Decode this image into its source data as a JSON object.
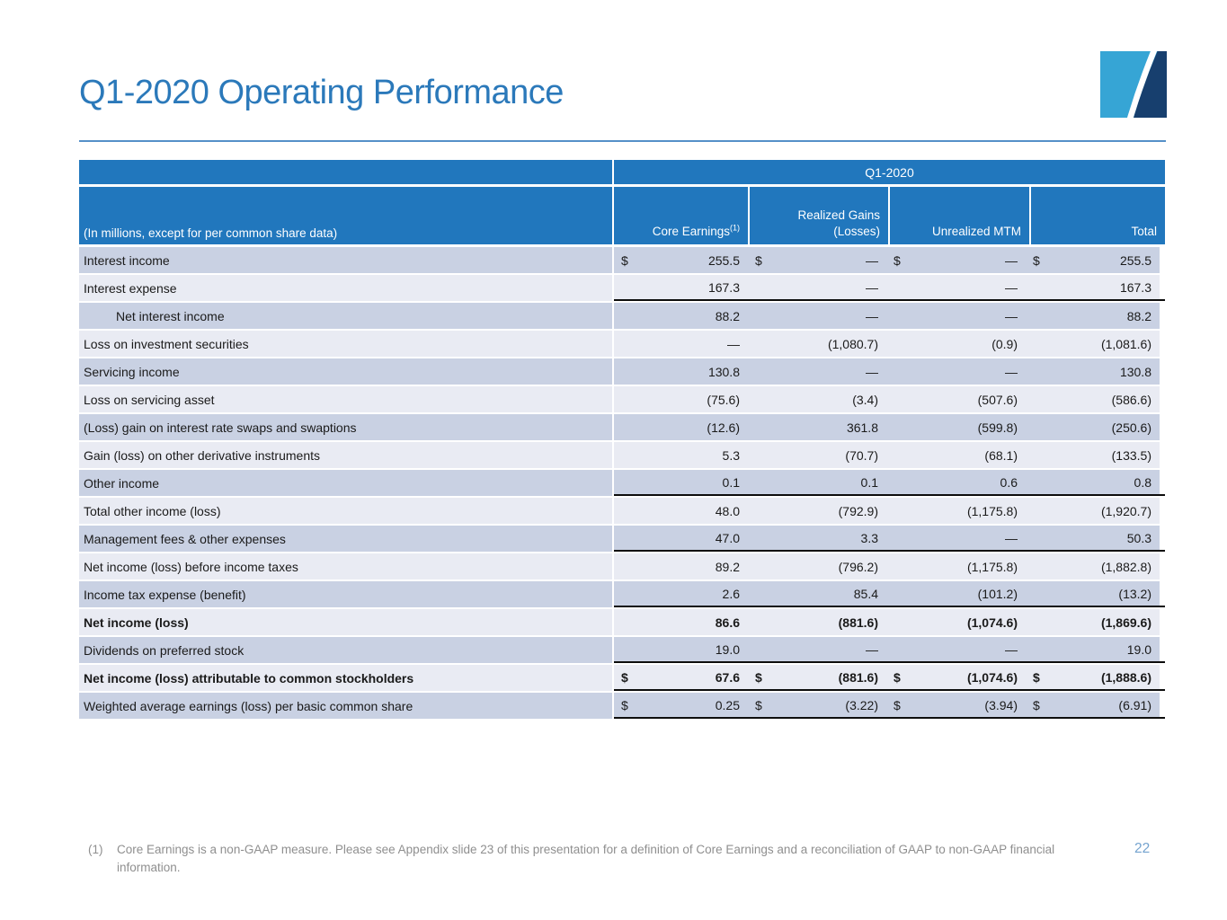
{
  "header": {
    "title": "Q1-2020 Operating Performance"
  },
  "table": {
    "period_header": "Q1-2020",
    "note_label": "(In millions, except for per common share data)",
    "columns": [
      {
        "label": "Core Earnings",
        "sup": "(1)"
      },
      {
        "label": "Realized Gains (Losses)",
        "sup": ""
      },
      {
        "label": "Unrealized MTM",
        "sup": ""
      },
      {
        "label": "Total",
        "sup": ""
      }
    ],
    "currency_symbol": "$",
    "rows": [
      {
        "label": "Interest income",
        "shade": "dark",
        "dollar": true,
        "bold": false,
        "indent": false,
        "line": false,
        "values": [
          "255.5",
          "—",
          "—",
          "255.5"
        ]
      },
      {
        "label": "Interest expense",
        "shade": "light",
        "dollar": false,
        "bold": false,
        "indent": false,
        "line": true,
        "values": [
          "167.3",
          "—",
          "—",
          "167.3"
        ]
      },
      {
        "label": "Net interest income",
        "shade": "dark",
        "dollar": false,
        "bold": false,
        "indent": true,
        "line": false,
        "values": [
          "88.2",
          "—",
          "—",
          "88.2"
        ]
      },
      {
        "label": "Loss on investment securities",
        "shade": "light",
        "dollar": false,
        "bold": false,
        "indent": false,
        "line": false,
        "values": [
          "—",
          "(1,080.7)",
          "(0.9)",
          "(1,081.6)"
        ]
      },
      {
        "label": "Servicing income",
        "shade": "dark",
        "dollar": false,
        "bold": false,
        "indent": false,
        "line": false,
        "values": [
          "130.8",
          "—",
          "—",
          "130.8"
        ]
      },
      {
        "label": "Loss on servicing asset",
        "shade": "light",
        "dollar": false,
        "bold": false,
        "indent": false,
        "line": false,
        "values": [
          "(75.6)",
          "(3.4)",
          "(507.6)",
          "(586.6)"
        ]
      },
      {
        "label": "(Loss) gain on interest rate swaps and swaptions",
        "shade": "dark",
        "dollar": false,
        "bold": false,
        "indent": false,
        "line": false,
        "values": [
          "(12.6)",
          "361.8",
          "(599.8)",
          "(250.6)"
        ]
      },
      {
        "label": "Gain (loss) on other derivative instruments",
        "shade": "light",
        "dollar": false,
        "bold": false,
        "indent": false,
        "line": false,
        "values": [
          "5.3",
          "(70.7)",
          "(68.1)",
          "(133.5)"
        ]
      },
      {
        "label": "Other income",
        "shade": "dark",
        "dollar": false,
        "bold": false,
        "indent": false,
        "line": true,
        "values": [
          "0.1",
          "0.1",
          "0.6",
          "0.8"
        ]
      },
      {
        "label": "Total other income (loss)",
        "shade": "light",
        "dollar": false,
        "bold": false,
        "indent": false,
        "line": false,
        "values": [
          "48.0",
          "(792.9)",
          "(1,175.8)",
          "(1,920.7)"
        ]
      },
      {
        "label": "Management fees & other expenses",
        "shade": "dark",
        "dollar": false,
        "bold": false,
        "indent": false,
        "line": true,
        "values": [
          "47.0",
          "3.3",
          "—",
          "50.3"
        ]
      },
      {
        "label": "Net income (loss) before income taxes",
        "shade": "light",
        "dollar": false,
        "bold": false,
        "indent": false,
        "line": false,
        "values": [
          "89.2",
          "(796.2)",
          "(1,175.8)",
          "(1,882.8)"
        ]
      },
      {
        "label": "Income tax expense (benefit)",
        "shade": "dark",
        "dollar": false,
        "bold": false,
        "indent": false,
        "line": true,
        "values": [
          "2.6",
          "85.4",
          "(101.2)",
          "(13.2)"
        ]
      },
      {
        "label": "Net income (loss)",
        "shade": "light",
        "dollar": false,
        "bold": true,
        "indent": false,
        "line": false,
        "values": [
          "86.6",
          "(881.6)",
          "(1,074.6)",
          "(1,869.6)"
        ]
      },
      {
        "label": "Dividends on preferred stock",
        "shade": "dark",
        "dollar": false,
        "bold": false,
        "indent": false,
        "line": true,
        "values": [
          "19.0",
          "—",
          "—",
          "19.0"
        ]
      },
      {
        "label": "Net income (loss) attributable to common stockholders",
        "shade": "light",
        "dollar": true,
        "bold": true,
        "indent": false,
        "line": true,
        "values": [
          "67.6",
          "(881.6)",
          "(1,074.6)",
          "(1,888.6)"
        ]
      },
      {
        "label": "Weighted average earnings (loss) per basic common share",
        "shade": "dark",
        "dollar": true,
        "bold": false,
        "indent": false,
        "line": true,
        "values": [
          "0.25",
          "(3.22)",
          "(3.94)",
          "(6.91)"
        ]
      }
    ]
  },
  "footnote": {
    "marker": "(1)",
    "text": "Core Earnings is a non-GAAP measure. Please see Appendix slide 23 of this presentation for a definition of Core Earnings and a reconciliation of GAAP to non-GAAP financial information."
  },
  "footer": {
    "page_number": "22"
  },
  "colors": {
    "header_blue": "#2177BD",
    "row_dark": "#C9D1E3",
    "row_light": "#E9EBF3",
    "title_blue": "#2B79BA",
    "rule_blue": "#5590C8",
    "footnote_gray": "#8F8F8F",
    "page_blue": "#74A3CF",
    "logo_light": "#36A5D5",
    "logo_navy": "#173F6E"
  }
}
